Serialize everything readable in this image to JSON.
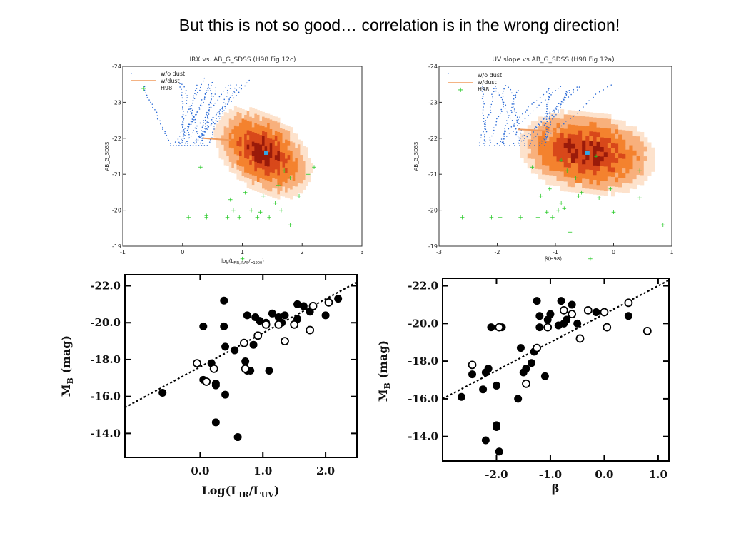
{
  "slide": {
    "title": "But this is not so good… correlation is in the wrong direction!"
  },
  "colors": {
    "heat_light": "#fde2cc",
    "heat_mid": "#f4822e",
    "heat_dark": "#9a1b0a",
    "model_no_dust": "#2a6ad6",
    "model_dust": "#f09a5c",
    "h98_points": "#22c922"
  },
  "chart_data": [
    {
      "type": "scatter",
      "title": "IRX vs. AB_G_SDSS (H98 Fig 12c)",
      "xlabel": "log(L",
      "xlabel_sub1": "FIR,IRAS",
      "xlabel_mid": "/L",
      "xlabel_sub2": "1900",
      "xlabel_end": ")",
      "ylabel": "AB_G_SDSS",
      "xlim": [
        -1,
        3
      ],
      "ylim": [
        -19,
        -24
      ],
      "xticks": [
        "-1",
        "0",
        "1",
        "2",
        "3"
      ],
      "yticks": [
        "-19",
        "-20",
        "-21",
        "-22",
        "-23",
        "-24"
      ],
      "legend": {
        "position": "top-left",
        "entries": [
          "w/o dust",
          "w/dust",
          "H98"
        ]
      },
      "heatmap": {
        "center_x": 1.35,
        "center_y": -21.6,
        "major_axis_slope": -0.55,
        "x_extent": [
          0.6,
          2.3
        ],
        "marker_x": 1.4,
        "marker_y": -21.6
      },
      "series": [
        {
          "name": "w/o dust",
          "style": "blue dotted tracks",
          "x_range": [
            -0.2,
            0.9
          ],
          "y_range": [
            -21.8,
            -23.6
          ]
        },
        {
          "name": "w/dust",
          "style": "orange line",
          "x": [
            0.35,
            0.8
          ],
          "y": [
            -22.0,
            -21.95
          ]
        },
        {
          "name": "H98",
          "x": [
            0.1,
            0.4,
            0.4,
            0.75,
            0.8,
            0.85,
            0.95,
            1.0,
            1.05,
            1.15,
            1.25,
            1.3,
            1.35,
            1.45,
            1.55,
            1.6,
            1.65,
            1.7,
            1.8,
            1.95,
            2.1,
            2.2,
            0.3,
            1.8
          ],
          "y": [
            -19.8,
            -19.8,
            -19.85,
            -19.8,
            -20.3,
            -20.0,
            -19.8,
            -18.65,
            -20.5,
            -20.0,
            -19.8,
            -19.95,
            -20.4,
            -19.8,
            -20.2,
            -20.7,
            -20.0,
            -21.1,
            -19.6,
            -20.4,
            -21.0,
            -21.2,
            -21.2,
            -20.9
          ]
        }
      ]
    },
    {
      "type": "scatter",
      "title": "UV slope vs AB_G_SDSS (H98 Fig 12a)",
      "xlabel": "β(H98)",
      "ylabel": "AB_G_SDSS",
      "xlim": [
        -3,
        1
      ],
      "ylim": [
        -19,
        -24
      ],
      "xticks": [
        "-3",
        "-2",
        "-1",
        "0",
        "1"
      ],
      "yticks": [
        "-19",
        "-20",
        "-21",
        "-22",
        "-23",
        "-24"
      ],
      "legend": {
        "position": "top-left",
        "entries": [
          "w/o dust",
          "w/dust",
          "H98"
        ]
      },
      "heatmap": {
        "center_x": -0.45,
        "center_y": -21.6,
        "major_axis_slope": -0.15,
        "x_extent": [
          -1.6,
          0.9
        ],
        "marker_x": -0.45,
        "marker_y": -21.6
      },
      "series": [
        {
          "name": "w/o dust",
          "style": "blue dotted tracks",
          "x_range": [
            -2.3,
            -0.3
          ],
          "y_range": [
            -21.8,
            -23.5
          ]
        },
        {
          "name": "w/dust",
          "style": "orange line",
          "x": [
            -1.65,
            -1.0
          ],
          "y": [
            -22.25,
            -22.2
          ]
        },
        {
          "name": "H98",
          "x": [
            -2.6,
            -2.1,
            -1.95,
            -1.6,
            -1.3,
            -1.25,
            -1.15,
            -1.1,
            -1.05,
            -0.95,
            -0.9,
            -0.85,
            -0.8,
            -0.75,
            -0.65,
            -0.55,
            -0.4,
            -0.25,
            -0.05,
            0.0,
            0.45,
            0.45,
            0.85,
            -0.9,
            -0.3,
            -1.4,
            -0.6
          ],
          "y": [
            -19.8,
            -19.8,
            -19.8,
            -19.8,
            -19.8,
            -20.4,
            -19.95,
            -20.6,
            -19.8,
            -20.0,
            -20.2,
            -20.05,
            -21.1,
            -19.4,
            -20.9,
            -20.5,
            -18.65,
            -20.35,
            -20.6,
            -19.95,
            -21.1,
            -20.35,
            -19.6,
            -21.4,
            -21.5,
            -21.2,
            -20.4
          ]
        }
      ]
    },
    {
      "type": "scatter",
      "title": "",
      "xlabel": "Log(L",
      "xlabel_sub1": "IR",
      "xlabel_mid": "/L",
      "xlabel_sub2": "UV",
      "xlabel_end": ")",
      "ylabel": "M",
      "ylabel_sub": "B",
      "ylabel_unit": " (mag)",
      "xlim": [
        -1.2,
        2.5
      ],
      "ylim": [
        -12.7,
        -22.6
      ],
      "xticks": [
        "0.0",
        "1.0",
        "2.0"
      ],
      "yticks": [
        "-22.0",
        "-20.0",
        "-18.0",
        "-16.0",
        "-14.0"
      ],
      "fit_line": {
        "x": [
          -1.2,
          2.5
        ],
        "y": [
          -15.4,
          -22.2
        ]
      },
      "series": [
        {
          "name": "filled",
          "x": [
            -0.6,
            0.05,
            0.25,
            0.25,
            0.4,
            0.4,
            0.38,
            0.18,
            0.25,
            0.05,
            0.6,
            0.55,
            0.72,
            0.75,
            0.8,
            0.75,
            0.85,
            0.88,
            0.95,
            1.05,
            1.15,
            1.1,
            1.25,
            1.3,
            1.35,
            1.55,
            1.55,
            1.65,
            1.75,
            2.0,
            2.2,
            0.38
          ],
          "y": [
            -16.2,
            -19.8,
            -14.6,
            -16.7,
            -16.1,
            -18.7,
            -21.2,
            -17.8,
            -16.6,
            -16.9,
            -13.8,
            -18.5,
            -17.9,
            -17.4,
            -17.4,
            -20.4,
            -18.8,
            -20.3,
            -20.1,
            -20.0,
            -20.5,
            -17.4,
            -20.3,
            -20.0,
            -20.4,
            -20.2,
            -21.0,
            -20.9,
            -20.6,
            -20.4,
            -21.3,
            -19.8
          ]
        },
        {
          "name": "open",
          "x": [
            -0.05,
            0.1,
            0.22,
            0.7,
            0.72,
            0.92,
            1.05,
            1.25,
            1.35,
            1.5,
            1.75,
            1.8,
            2.05
          ],
          "y": [
            -17.8,
            -16.8,
            -17.5,
            -18.9,
            -17.5,
            -19.3,
            -19.9,
            -19.9,
            -19.0,
            -19.9,
            -19.6,
            -20.9,
            -21.1
          ]
        }
      ]
    },
    {
      "type": "scatter",
      "title": "",
      "xlabel": "β",
      "ylabel": "M",
      "ylabel_sub": "B",
      "ylabel_unit": " (mag)",
      "xlim": [
        -3.0,
        1.2
      ],
      "ylim": [
        -12.7,
        -22.4
      ],
      "xticks": [
        "-2.0",
        "-1.0",
        "0.0",
        "1.0"
      ],
      "yticks": [
        "-22.0",
        "-20.0",
        "-18.0",
        "-16.0",
        "-14.0"
      ],
      "fit_line": {
        "x": [
          -3.0,
          1.2
        ],
        "y": [
          -16.0,
          -22.3
        ]
      },
      "series": [
        {
          "name": "filled",
          "x": [
            -2.65,
            -2.45,
            -2.25,
            -2.2,
            -2.2,
            -2.1,
            -2.0,
            -2.0,
            -1.9,
            -1.95,
            -1.6,
            -1.55,
            -1.5,
            -1.45,
            -1.25,
            -1.35,
            -1.2,
            -1.2,
            -1.1,
            -1.05,
            -1.0,
            -0.85,
            -0.8,
            -0.75,
            -0.7,
            -0.6,
            -0.5,
            -0.15,
            0.45,
            -2.15,
            -2.0,
            -1.3
          ],
          "y": [
            -16.1,
            -17.3,
            -16.5,
            -17.4,
            -13.8,
            -19.8,
            -14.5,
            -16.7,
            -19.8,
            -13.2,
            -16.0,
            -18.7,
            -17.4,
            -17.6,
            -21.2,
            -17.9,
            -19.8,
            -20.4,
            -17.2,
            -20.2,
            -20.5,
            -19.9,
            -21.2,
            -20.0,
            -20.2,
            -21.0,
            -20.0,
            -20.6,
            -20.4,
            -17.6,
            -14.6,
            -18.5
          ]
        },
        {
          "name": "open",
          "x": [
            -2.45,
            -1.95,
            -1.45,
            -1.05,
            -0.75,
            -0.6,
            -0.45,
            -0.3,
            0.0,
            0.05,
            0.45,
            0.8,
            -1.25
          ],
          "y": [
            -17.8,
            -19.8,
            -16.8,
            -19.8,
            -20.7,
            -20.5,
            -19.2,
            -20.7,
            -20.6,
            -19.8,
            -21.1,
            -19.6,
            -18.7
          ]
        }
      ],
      "open_on_top": true
    }
  ]
}
